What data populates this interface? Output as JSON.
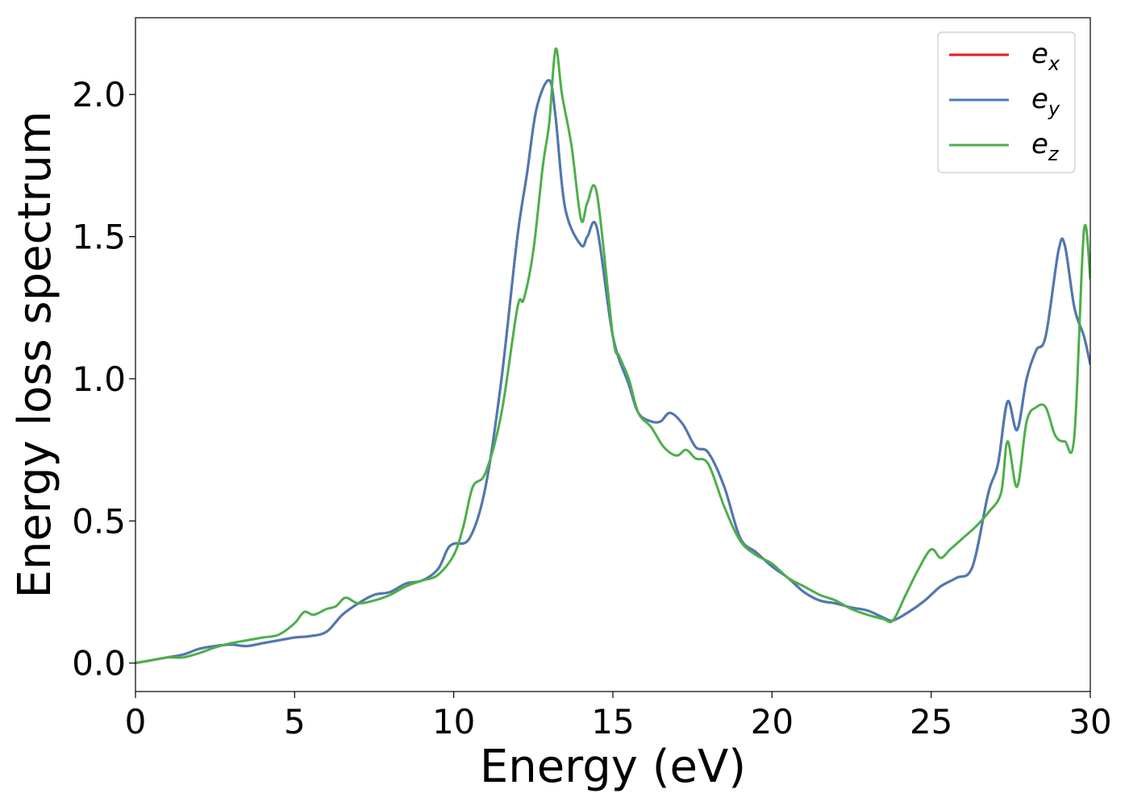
{
  "chart_data": {
    "type": "line",
    "title": "",
    "xlabel": "Energy (eV)",
    "ylabel": "Energy loss spectrum",
    "xlim": [
      0,
      30
    ],
    "ylim": [
      -0.1,
      2.27
    ],
    "xticks": [
      0,
      5,
      10,
      15,
      20,
      25,
      30
    ],
    "yticks": [
      0.0,
      0.5,
      1.0,
      1.5,
      2.0
    ],
    "xtick_labels": [
      "0",
      "5",
      "10",
      "15",
      "20",
      "25",
      "30"
    ],
    "ytick_labels": [
      "0.0",
      "0.5",
      "1.0",
      "1.5",
      "2.0"
    ],
    "grid": false,
    "legend_position": "top-right",
    "series": [
      {
        "name": "e_x",
        "label_base": "e",
        "label_sub": "x",
        "color": "#e41a1c",
        "x": [
          0,
          0.5,
          1,
          1.5,
          2,
          2.5,
          3,
          3.5,
          4,
          4.5,
          5,
          5.5,
          6,
          6.5,
          7,
          7.5,
          8,
          8.5,
          9,
          9.5,
          9.8,
          10,
          10.5,
          11,
          11.5,
          12,
          12.3,
          12.6,
          13.0,
          13.2,
          13.5,
          14.0,
          14.2,
          14.5,
          15.0,
          15.5,
          15.8,
          16.2,
          16.5,
          16.8,
          17.2,
          17.6,
          18.0,
          18.5,
          19.0,
          19.5,
          20.0,
          20.5,
          21.0,
          21.5,
          22.0,
          22.5,
          23.0,
          23.5,
          23.8,
          24.3,
          24.8,
          25.3,
          25.8,
          26.3,
          26.8,
          27.1,
          27.4,
          27.7,
          28.0,
          28.3,
          28.6,
          29.0,
          29.2,
          29.5,
          29.8,
          30.0
        ],
        "y": [
          0.0,
          0.01,
          0.02,
          0.03,
          0.05,
          0.06,
          0.065,
          0.06,
          0.07,
          0.08,
          0.09,
          0.095,
          0.11,
          0.17,
          0.21,
          0.24,
          0.25,
          0.28,
          0.29,
          0.33,
          0.4,
          0.42,
          0.44,
          0.62,
          1.0,
          1.5,
          1.72,
          1.95,
          2.05,
          1.92,
          1.6,
          1.47,
          1.5,
          1.53,
          1.15,
          0.98,
          0.88,
          0.85,
          0.85,
          0.88,
          0.84,
          0.76,
          0.74,
          0.62,
          0.44,
          0.39,
          0.34,
          0.3,
          0.25,
          0.22,
          0.21,
          0.195,
          0.185,
          0.16,
          0.15,
          0.18,
          0.22,
          0.27,
          0.3,
          0.34,
          0.6,
          0.7,
          0.92,
          0.82,
          1.0,
          1.1,
          1.15,
          1.45,
          1.47,
          1.25,
          1.15,
          1.05
        ]
      },
      {
        "name": "e_y",
        "label_base": "e",
        "label_sub": "y",
        "color": "#4a7ab5",
        "x": [
          0,
          0.5,
          1,
          1.5,
          2,
          2.5,
          3,
          3.5,
          4,
          4.5,
          5,
          5.5,
          6,
          6.5,
          7,
          7.5,
          8,
          8.5,
          9,
          9.5,
          9.8,
          10,
          10.5,
          11,
          11.5,
          12,
          12.3,
          12.6,
          13.0,
          13.2,
          13.5,
          14.0,
          14.2,
          14.5,
          15.0,
          15.5,
          15.8,
          16.2,
          16.5,
          16.8,
          17.2,
          17.6,
          18.0,
          18.5,
          19.0,
          19.5,
          20.0,
          20.5,
          21.0,
          21.5,
          22.0,
          22.5,
          23.0,
          23.5,
          23.8,
          24.3,
          24.8,
          25.3,
          25.8,
          26.3,
          26.8,
          27.1,
          27.4,
          27.7,
          28.0,
          28.3,
          28.6,
          29.0,
          29.2,
          29.5,
          29.8,
          30.0
        ],
        "y": [
          0.0,
          0.01,
          0.02,
          0.03,
          0.05,
          0.06,
          0.065,
          0.06,
          0.07,
          0.08,
          0.09,
          0.095,
          0.11,
          0.17,
          0.21,
          0.24,
          0.25,
          0.28,
          0.29,
          0.33,
          0.4,
          0.42,
          0.44,
          0.62,
          1.0,
          1.5,
          1.72,
          1.95,
          2.05,
          1.92,
          1.6,
          1.47,
          1.5,
          1.53,
          1.15,
          0.98,
          0.88,
          0.85,
          0.85,
          0.88,
          0.84,
          0.76,
          0.74,
          0.62,
          0.44,
          0.39,
          0.34,
          0.3,
          0.25,
          0.22,
          0.21,
          0.195,
          0.185,
          0.16,
          0.15,
          0.18,
          0.22,
          0.27,
          0.3,
          0.34,
          0.6,
          0.7,
          0.92,
          0.82,
          1.0,
          1.1,
          1.15,
          1.45,
          1.47,
          1.25,
          1.15,
          1.05
        ]
      },
      {
        "name": "e_z",
        "label_base": "e",
        "label_sub": "z",
        "color": "#4daf4a",
        "x": [
          0,
          0.5,
          1,
          1.5,
          2,
          2.5,
          3,
          3.5,
          4,
          4.5,
          5,
          5.3,
          5.6,
          6.0,
          6.3,
          6.6,
          7.0,
          7.5,
          8.0,
          8.5,
          9.0,
          9.5,
          10.0,
          10.3,
          10.6,
          11.0,
          11.5,
          12.0,
          12.2,
          12.5,
          12.8,
          13.0,
          13.2,
          13.4,
          13.7,
          14.0,
          14.2,
          14.5,
          15.0,
          15.2,
          15.5,
          15.8,
          16.2,
          16.6,
          17.0,
          17.3,
          17.6,
          18.0,
          18.5,
          19.0,
          19.5,
          20.0,
          20.5,
          21.0,
          21.5,
          22.0,
          22.5,
          23.0,
          23.5,
          23.8,
          24.2,
          24.6,
          25.0,
          25.3,
          25.6,
          26.0,
          26.4,
          26.8,
          27.2,
          27.4,
          27.7,
          28.0,
          28.3,
          28.6,
          28.9,
          29.2,
          29.5,
          29.8,
          30.0
        ],
        "y": [
          0.0,
          0.01,
          0.02,
          0.02,
          0.035,
          0.055,
          0.07,
          0.08,
          0.09,
          0.1,
          0.14,
          0.18,
          0.17,
          0.19,
          0.2,
          0.23,
          0.21,
          0.22,
          0.24,
          0.27,
          0.29,
          0.31,
          0.38,
          0.48,
          0.62,
          0.67,
          0.88,
          1.25,
          1.28,
          1.45,
          1.75,
          1.9,
          2.16,
          2.0,
          1.82,
          1.56,
          1.62,
          1.65,
          1.15,
          1.08,
          1.0,
          0.88,
          0.83,
          0.76,
          0.73,
          0.75,
          0.72,
          0.7,
          0.55,
          0.43,
          0.38,
          0.35,
          0.3,
          0.27,
          0.24,
          0.22,
          0.19,
          0.17,
          0.155,
          0.15,
          0.24,
          0.33,
          0.4,
          0.37,
          0.4,
          0.44,
          0.48,
          0.53,
          0.6,
          0.78,
          0.62,
          0.85,
          0.9,
          0.9,
          0.8,
          0.78,
          0.8,
          1.52,
          1.35
        ]
      }
    ]
  }
}
